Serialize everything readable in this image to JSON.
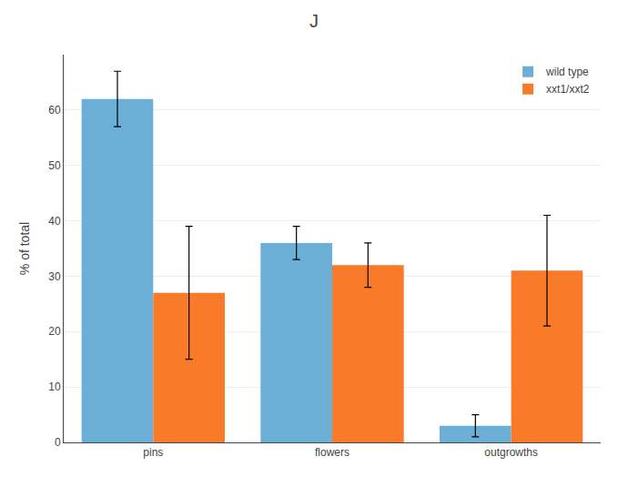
{
  "chart_data": {
    "type": "bar",
    "title": "J",
    "categories": [
      "pins",
      "flowers",
      "outgrowths"
    ],
    "series": [
      {
        "name": "wild type",
        "color": "#6BAED6",
        "values": [
          62,
          36,
          3
        ],
        "errors": [
          5,
          3,
          2
        ]
      },
      {
        "name": "xxt1/xxt2",
        "color": "#F97B2A",
        "values": [
          27,
          32,
          31
        ],
        "errors": [
          12,
          4,
          10
        ]
      }
    ],
    "ylabel": "% of total",
    "ylim": [
      0,
      70
    ],
    "yticks": [
      0,
      10,
      20,
      30,
      40,
      50,
      60
    ],
    "grid": true,
    "legend": "upper right"
  }
}
